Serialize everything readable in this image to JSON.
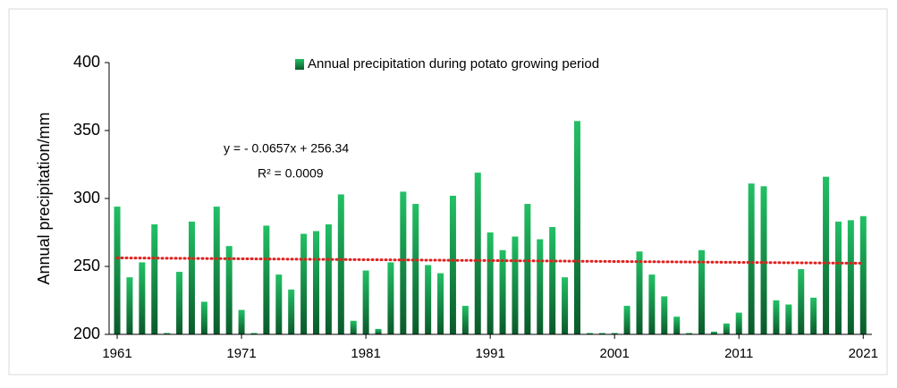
{
  "chart_data": {
    "type": "bar",
    "y_label": "Annual precipitation/mm",
    "x": [
      1961,
      1962,
      1963,
      1964,
      1965,
      1966,
      1967,
      1968,
      1969,
      1970,
      1971,
      1972,
      1973,
      1974,
      1975,
      1976,
      1977,
      1978,
      1979,
      1980,
      1981,
      1982,
      1983,
      1984,
      1985,
      1986,
      1987,
      1988,
      1989,
      1990,
      1991,
      1992,
      1993,
      1994,
      1995,
      1996,
      1997,
      1998,
      1999,
      2000,
      2001,
      2002,
      2003,
      2004,
      2005,
      2006,
      2007,
      2008,
      2009,
      2010,
      2011,
      2012,
      2013,
      2014,
      2015,
      2016,
      2017,
      2018,
      2019,
      2020,
      2021
    ],
    "series": [
      {
        "name": "Annual precipitation during potato growing period",
        "color": "#22c065",
        "values": [
          294,
          242,
          253,
          281,
          201,
          246,
          283,
          224,
          294,
          265,
          218,
          201,
          280,
          244,
          233,
          274,
          276,
          281,
          303,
          210,
          247,
          204,
          253,
          305,
          296,
          251,
          245,
          302,
          221,
          319,
          275,
          262,
          272,
          296,
          270,
          279,
          242,
          357,
          201,
          201,
          201,
          221,
          261,
          244,
          228,
          213,
          201,
          262,
          202,
          208,
          216,
          311,
          309,
          225,
          222,
          248,
          227,
          316,
          283,
          284,
          287
        ]
      }
    ],
    "trendline": {
      "slope": -0.0657,
      "intercept": 256.34,
      "color": "#e0201e",
      "equation": "y =  - 0.0657x + 256.34",
      "r2_label": "R² = 0.0009"
    },
    "xlim": [
      1960.35,
      2021.7
    ],
    "xticks": [
      1961,
      1971,
      1981,
      1991,
      2001,
      2011,
      2021
    ],
    "ylim": [
      200,
      400
    ],
    "yticks": [
      200,
      250,
      300,
      350,
      400
    ],
    "grid": false
  }
}
